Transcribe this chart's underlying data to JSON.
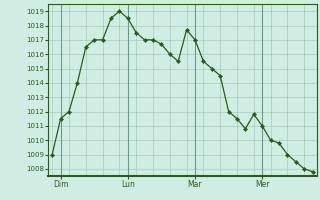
{
  "y_values": [
    1009,
    1011.5,
    1012,
    1014,
    1016.5,
    1017,
    1017,
    1018.5,
    1019,
    1018.5,
    1017.5,
    1017,
    1017,
    1016.7,
    1016,
    1015.5,
    1017.7,
    1017,
    1015.5,
    1015,
    1014.5,
    1012,
    1011.5,
    1010.8,
    1011.8,
    1011,
    1010,
    1009.8,
    1009,
    1008.5,
    1008,
    1007.8
  ],
  "x_tick_positions_data": [
    1,
    9,
    17,
    25
  ],
  "x_tick_labels": [
    "Dim",
    "Lun",
    "Mar",
    "Mer"
  ],
  "x_vline_positions": [
    1,
    9,
    17,
    25
  ],
  "y_tick_min": 1008,
  "y_tick_max": 1019,
  "line_color": "#2d5a1b",
  "marker_color": "#2d5a1b",
  "bg_color": "#d0ede4",
  "grid_color": "#9fc4b4",
  "grid_vline_color": "#6a9a8a",
  "spine_color": "#2d5a1b",
  "xlim_min": -0.5,
  "xlim_max": 31.5,
  "ylim_min": 1007.5,
  "ylim_max": 1019.5
}
